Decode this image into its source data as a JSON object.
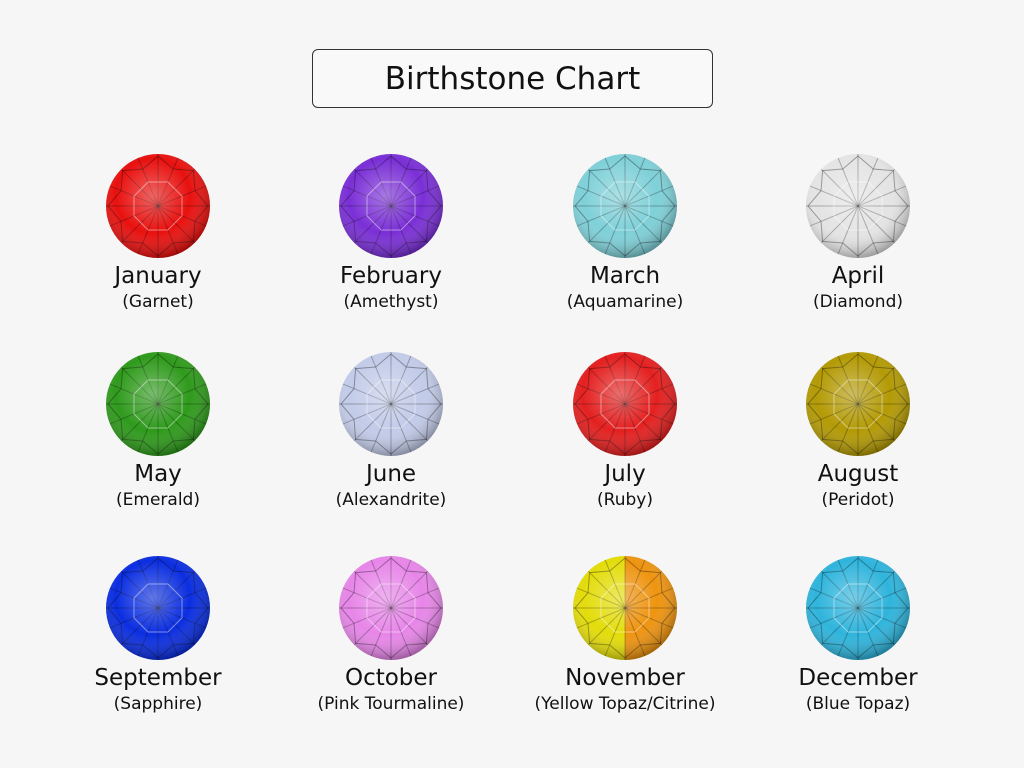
{
  "title": "Birthstone Chart",
  "stones": [
    {
      "month": "January",
      "stone": "(Garnet)",
      "colors": [
        "#e8110f"
      ]
    },
    {
      "month": "February",
      "stone": "(Amethyst)",
      "colors": [
        "#7a2fd6"
      ]
    },
    {
      "month": "March",
      "stone": "(Aquamarine)",
      "colors": [
        "#7fd0d8"
      ]
    },
    {
      "month": "April",
      "stone": "(Diamond)",
      "colors": [
        "#e4e4e4"
      ]
    },
    {
      "month": "May",
      "stone": "(Emerald)",
      "colors": [
        "#2f9a1c"
      ]
    },
    {
      "month": "June",
      "stone": "(Alexandrite)",
      "colors": [
        "#c2cbe8"
      ]
    },
    {
      "month": "July",
      "stone": "(Ruby)",
      "colors": [
        "#e42020"
      ]
    },
    {
      "month": "August",
      "stone": "(Peridot)",
      "colors": [
        "#b39a05"
      ]
    },
    {
      "month": "September",
      "stone": "(Sapphire)",
      "colors": [
        "#0b2ee0"
      ]
    },
    {
      "month": "October",
      "stone": "(Pink Tourmaline)",
      "colors": [
        "#e786e8"
      ]
    },
    {
      "month": "November",
      "stone": "(Yellow Topaz/Citrine)",
      "colors": [
        "#e3dc0a",
        "#ee9410"
      ]
    },
    {
      "month": "December",
      "stone": "(Blue Topaz)",
      "colors": [
        "#2fb4dc"
      ]
    }
  ]
}
